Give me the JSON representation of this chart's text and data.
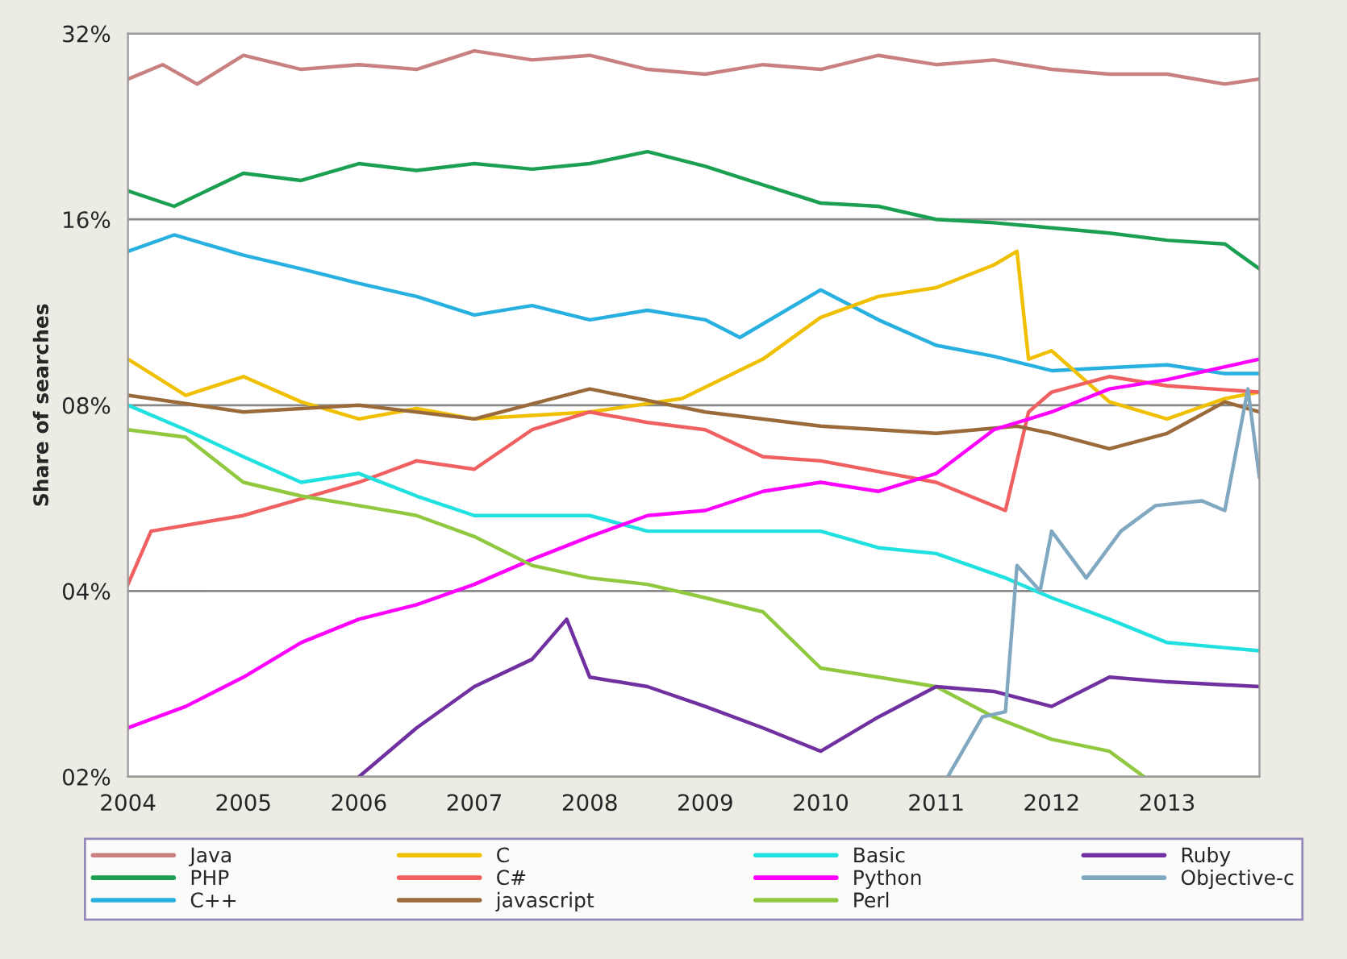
{
  "chart_data": {
    "type": "line",
    "ylabel": "Share of searches",
    "log": true,
    "grid": "y",
    "legend": "bottom",
    "marker": "none",
    "line_style": "solid",
    "xlim": [
      2004,
      2013.8
    ],
    "xticks": [
      2004,
      2005,
      2006,
      2007,
      2008,
      2009,
      2010,
      2011,
      2012,
      2013
    ],
    "ylim": [
      2,
      32
    ],
    "yticks": [
      {
        "value": 2,
        "label": "02%"
      },
      {
        "value": 4,
        "label": "04%"
      },
      {
        "value": 8,
        "label": "08%"
      },
      {
        "value": 16,
        "label": "16%"
      },
      {
        "value": 32,
        "label": "32%"
      }
    ],
    "series": [
      {
        "name": "Java",
        "color": "#c98080",
        "x": [
          2004,
          2004.3,
          2004.6,
          2005,
          2005.5,
          2006,
          2006.5,
          2007,
          2007.5,
          2008,
          2008.5,
          2009,
          2009.5,
          2010,
          2010.5,
          2011,
          2011.5,
          2012,
          2012.5,
          2013,
          2013.5,
          2013.8
        ],
        "values": [
          27,
          28.5,
          26.5,
          29.5,
          28,
          28.5,
          28,
          30,
          29,
          29.5,
          28,
          27.5,
          28.5,
          28,
          29.5,
          28.5,
          29,
          28,
          27.5,
          27.5,
          26.5,
          27
        ]
      },
      {
        "name": "PHP",
        "color": "#1aa050",
        "x": [
          2004,
          2004.4,
          2005,
          2005.5,
          2006,
          2006.5,
          2007,
          2007.5,
          2008,
          2008.5,
          2009,
          2009.5,
          2010,
          2010.5,
          2011,
          2011.5,
          2012,
          2012.5,
          2013,
          2013.5,
          2013.8
        ],
        "values": [
          17.8,
          16.8,
          19,
          18.5,
          19.7,
          19.2,
          19.7,
          19.3,
          19.7,
          20.6,
          19.5,
          18.2,
          17,
          16.8,
          16,
          15.8,
          15.5,
          15.2,
          14.8,
          14.6,
          13.3
        ]
      },
      {
        "name": "C++",
        "color": "#28b0e0",
        "x": [
          2004,
          2004.4,
          2005,
          2005.5,
          2006,
          2006.5,
          2007,
          2007.5,
          2008,
          2008.5,
          2009,
          2009.3,
          2010,
          2010.5,
          2011,
          2011.5,
          2012,
          2012.5,
          2013,
          2013.5,
          2013.8
        ],
        "values": [
          14.2,
          15.1,
          14,
          13.3,
          12.6,
          12,
          11.2,
          11.6,
          11,
          11.4,
          11,
          10.3,
          12.3,
          11,
          10,
          9.6,
          9.1,
          9.2,
          9.3,
          9.0,
          9.0
        ]
      },
      {
        "name": "C",
        "color": "#f0c000",
        "x": [
          2004,
          2004.5,
          2005,
          2005.5,
          2006,
          2006.5,
          2007,
          2008,
          2008.8,
          2009.5,
          2010,
          2010.5,
          2011,
          2011.5,
          2011.7,
          2011.8,
          2012,
          2012.5,
          2013,
          2013.5,
          2013.8
        ],
        "values": [
          9.5,
          8.3,
          8.9,
          8.1,
          7.6,
          7.9,
          7.6,
          7.8,
          8.2,
          9.5,
          11.1,
          12,
          12.4,
          13.5,
          14.2,
          9.5,
          9.8,
          8.1,
          7.6,
          8.2,
          8.4
        ]
      },
      {
        "name": "C#",
        "color": "#f06060",
        "x": [
          2004,
          2004.2,
          2005,
          2006,
          2006.5,
          2007,
          2007.5,
          2008,
          2008.5,
          2009,
          2009.5,
          2010,
          2011,
          2011.6,
          2011.8,
          2012,
          2012.5,
          2013,
          2013.8
        ],
        "values": [
          4.1,
          5,
          5.3,
          6,
          6.5,
          6.3,
          7.3,
          7.8,
          7.5,
          7.3,
          6.6,
          6.5,
          6,
          5.4,
          7.8,
          8.4,
          8.9,
          8.6,
          8.4
        ]
      },
      {
        "name": "javascript",
        "color": "#9a6a3a",
        "x": [
          2004,
          2005,
          2006,
          2007,
          2008,
          2009,
          2010,
          2011,
          2011.7,
          2012,
          2012.5,
          2013,
          2013.5,
          2013.8
        ],
        "values": [
          8.3,
          7.8,
          8,
          7.6,
          8.5,
          7.8,
          7.4,
          7.2,
          7.4,
          7.2,
          6.8,
          7.2,
          8.1,
          7.8
        ]
      },
      {
        "name": "Basic",
        "color": "#20e0e0",
        "x": [
          2004,
          2004.5,
          2005,
          2005.5,
          2006,
          2006.5,
          2007,
          2008,
          2008.5,
          2009,
          2010,
          2010.5,
          2011,
          2011.6,
          2012,
          2012.5,
          2013,
          2013.8
        ],
        "values": [
          8,
          7.3,
          6.6,
          6,
          6.2,
          5.7,
          5.3,
          5.3,
          5,
          5,
          5,
          4.7,
          4.6,
          4.2,
          3.9,
          3.6,
          3.3,
          3.2
        ]
      },
      {
        "name": "Python",
        "color": "#ff00ff",
        "x": [
          2004,
          2004.5,
          2005,
          2005.5,
          2006,
          2006.5,
          2007,
          2007.5,
          2008,
          2008.5,
          2009,
          2009.5,
          2010,
          2010.5,
          2011,
          2011.5,
          2012,
          2012.5,
          2013,
          2013.8
        ],
        "values": [
          2.4,
          2.6,
          2.9,
          3.3,
          3.6,
          3.8,
          4.1,
          4.5,
          4.9,
          5.3,
          5.4,
          5.8,
          6,
          5.8,
          6.2,
          7.3,
          7.8,
          8.5,
          8.8,
          9.5
        ]
      },
      {
        "name": "Perl",
        "color": "#90c840",
        "x": [
          2004,
          2004.5,
          2005,
          2005.5,
          2006,
          2006.5,
          2007,
          2007.5,
          2008,
          2008.5,
          2009,
          2009.5,
          2010,
          2010.5,
          2011,
          2011.5,
          2012,
          2012.5,
          2012.8
        ],
        "values": [
          7.3,
          7.1,
          6,
          5.7,
          5.5,
          5.3,
          4.9,
          4.4,
          4.2,
          4.1,
          3.9,
          3.7,
          3,
          2.9,
          2.8,
          2.5,
          2.3,
          2.2,
          2
        ]
      },
      {
        "name": "Ruby",
        "color": "#7030a0",
        "x": [
          2006,
          2006.5,
          2007,
          2007.5,
          2007.8,
          2008,
          2008.5,
          2009,
          2009.5,
          2010,
          2010.5,
          2011,
          2011.5,
          2012,
          2012.5,
          2013,
          2013.8
        ],
        "values": [
          2,
          2.4,
          2.8,
          3.1,
          3.6,
          2.9,
          2.8,
          2.6,
          2.4,
          2.2,
          2.5,
          2.8,
          2.75,
          2.6,
          2.9,
          2.85,
          2.8
        ]
      },
      {
        "name": "Objective-c",
        "color": "#80a8c0",
        "x": [
          2011.1,
          2011.4,
          2011.6,
          2011.7,
          2011.9,
          2012,
          2012.3,
          2012.6,
          2012.9,
          2013.3,
          2013.5,
          2013.7,
          2013.8
        ],
        "values": [
          2,
          2.5,
          2.55,
          4.4,
          4,
          5,
          4.2,
          5,
          5.5,
          5.6,
          5.4,
          8.5,
          6.1
        ]
      }
    ]
  }
}
